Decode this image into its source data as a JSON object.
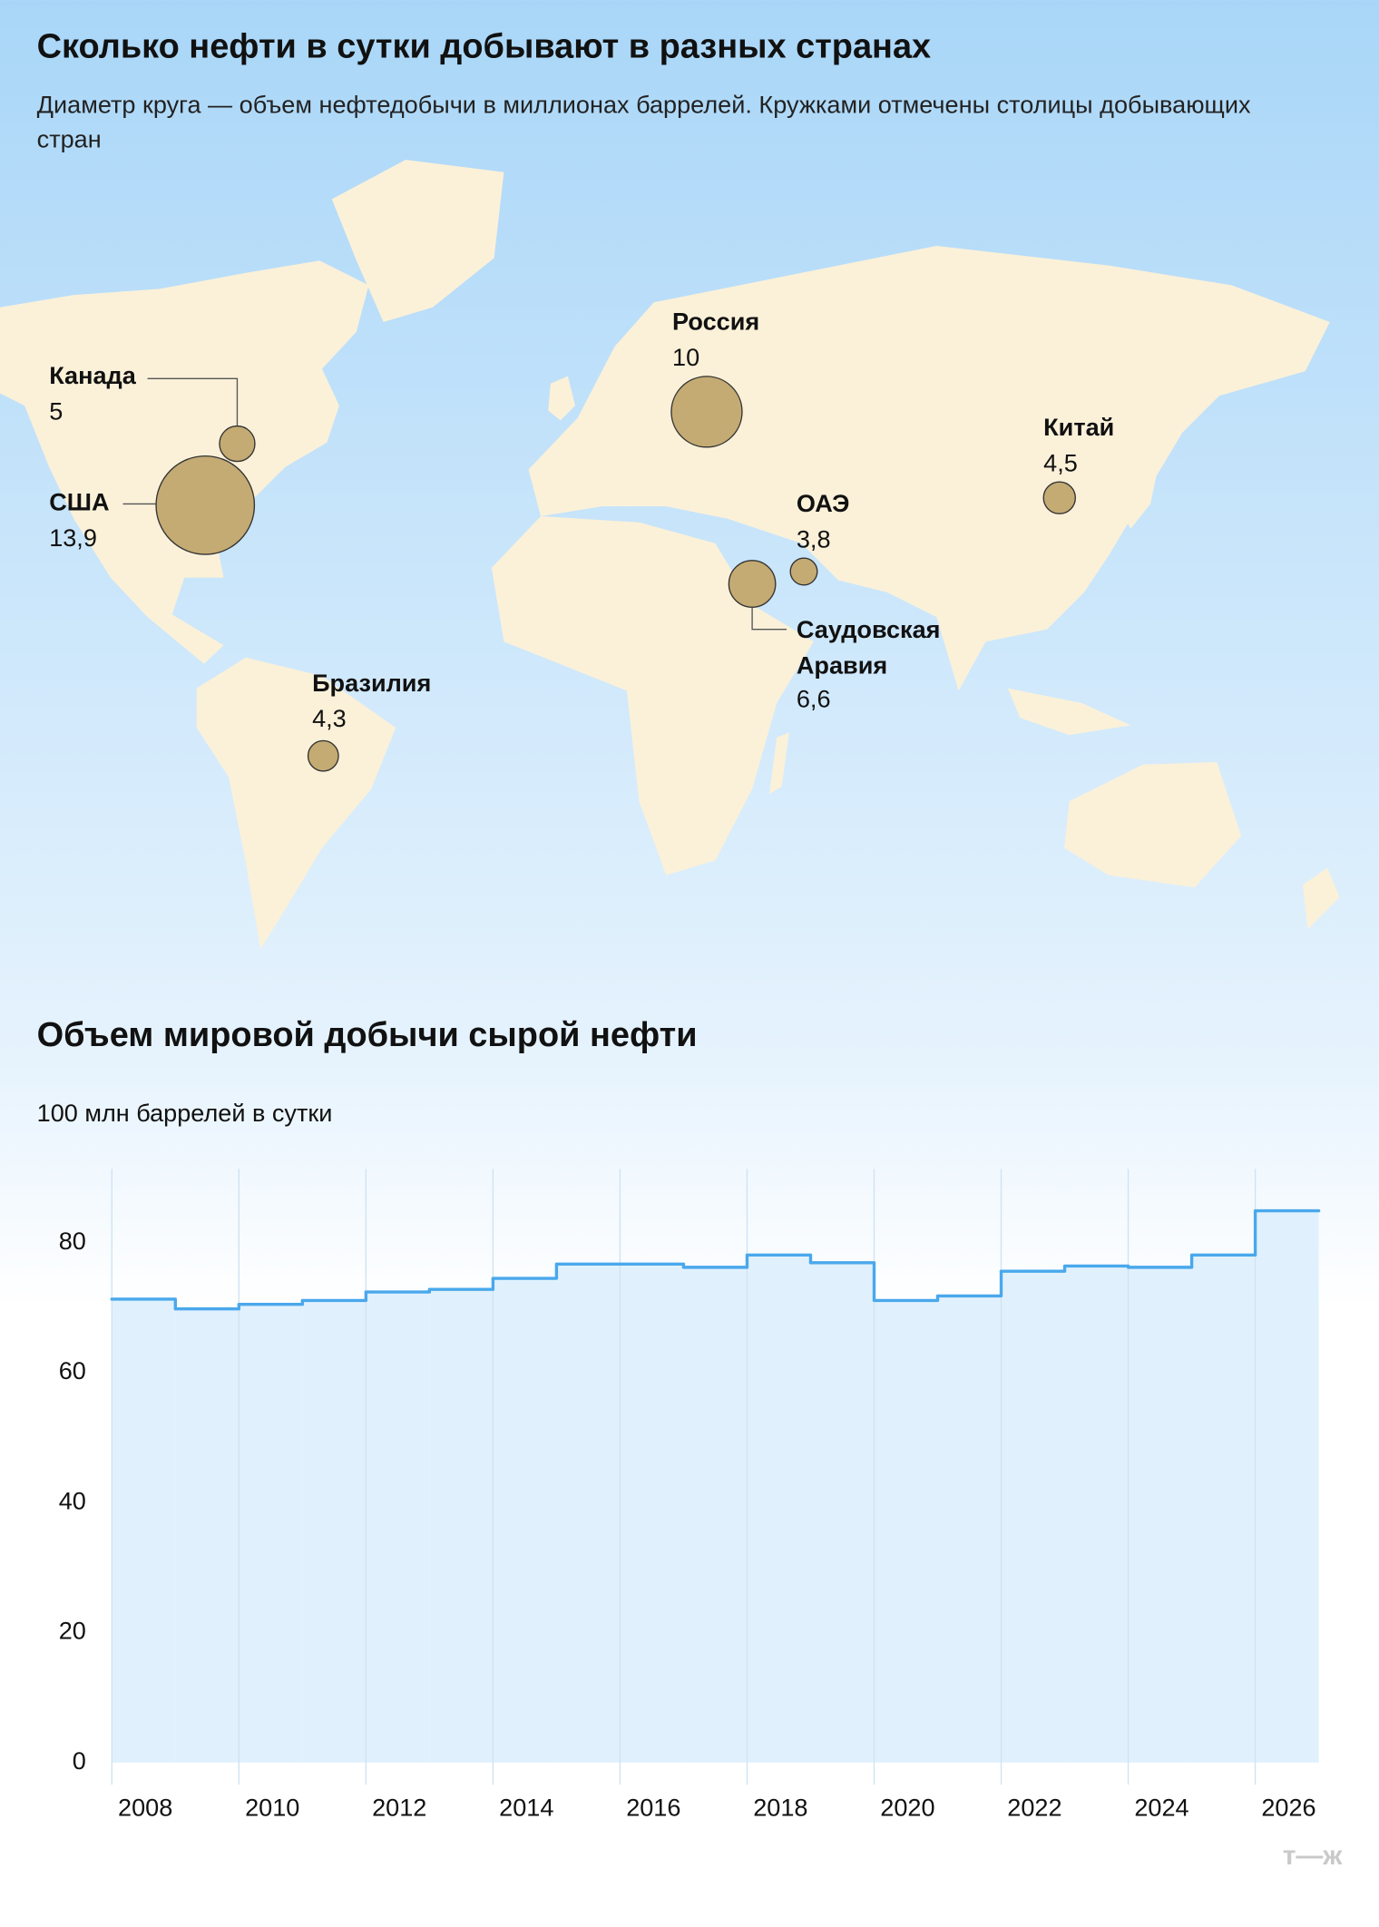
{
  "chart_data": [
    {
      "type": "bubble-map",
      "title": "Сколько нефти в сутки добывают в разных странах",
      "subtitle": "Диаметр круга — объем нефтедобычи в миллионах баррелей. Кружками отмечены столицы добывающих стран",
      "categories": [
        "Канада",
        "США",
        "Россия",
        "Китай",
        "ОАЭ",
        "Саудовская Аравия",
        "Бразилия"
      ],
      "values": [
        5,
        13.9,
        10,
        4.5,
        3.8,
        6.6,
        4.3
      ],
      "value_labels": [
        "5",
        "13,9",
        "10",
        "4,5",
        "3,8",
        "6,6",
        "4,3"
      ],
      "color": "#c4ab73"
    },
    {
      "type": "step",
      "title": "Объем мировой добычи сырой нефти",
      "y_label": "100 млн баррелей в сутки",
      "x": [
        2008,
        2009,
        2010,
        2011,
        2012,
        2013,
        2014,
        2015,
        2016,
        2017,
        2018,
        2019,
        2020,
        2021,
        2022,
        2023,
        2024,
        2025,
        2026
      ],
      "values": [
        71.3,
        69.8,
        70.5,
        71.1,
        72.4,
        72.8,
        74.5,
        76.7,
        76.7,
        76.2,
        78.1,
        76.9,
        71.1,
        71.8,
        75.6,
        76.4,
        76.2,
        78.1,
        84.9
      ],
      "color": "#4aa8ec",
      "xlim": [
        2008,
        2027
      ],
      "xticks": [
        2008,
        2010,
        2012,
        2014,
        2016,
        2018,
        2020,
        2022,
        2024,
        2026
      ],
      "ylim": [
        0,
        90
      ],
      "yticks": [
        0,
        20,
        40,
        60,
        80
      ],
      "grid": "vertical"
    }
  ],
  "footer": {
    "logo": "т—ж"
  }
}
